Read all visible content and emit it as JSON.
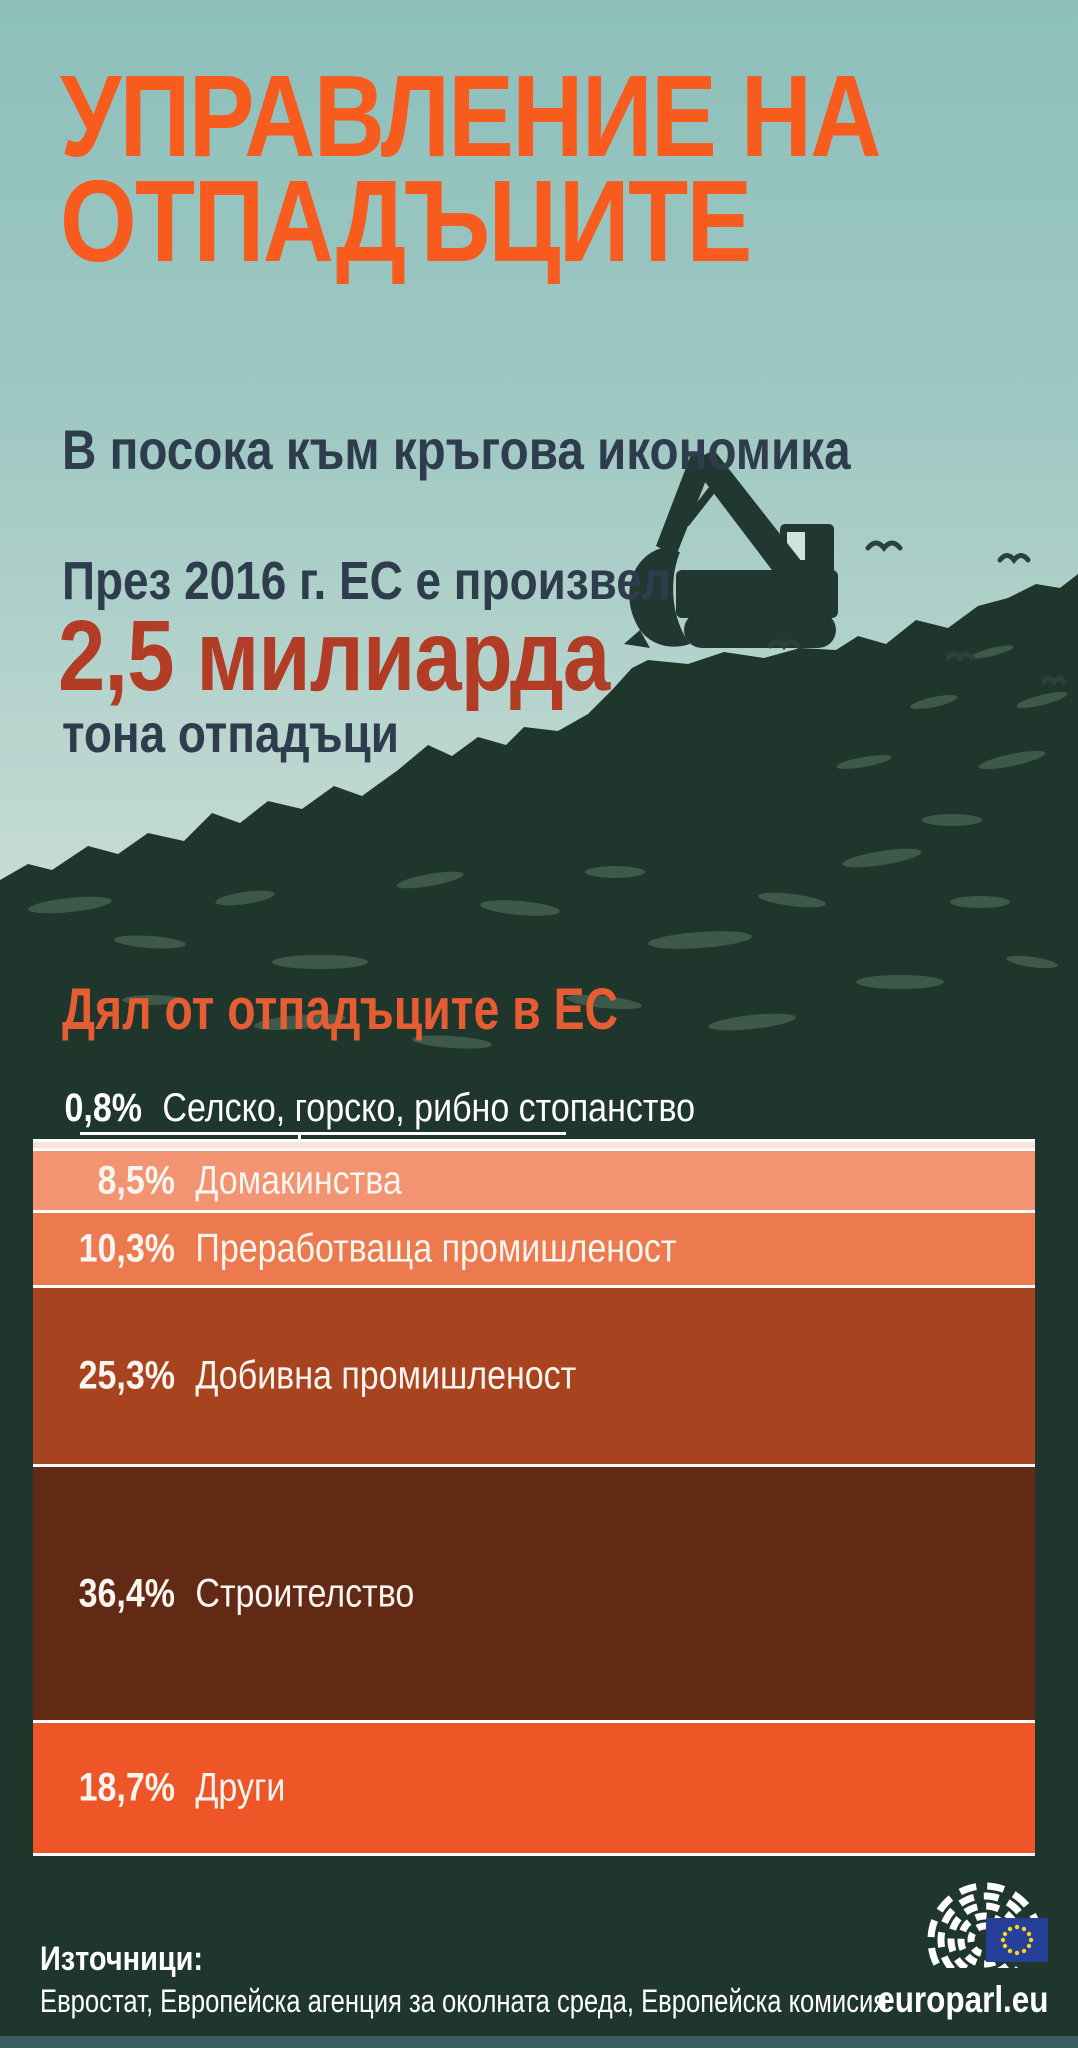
{
  "header": {
    "title_line1": "УПРАВЛЕНИЕ НА",
    "title_line2": "ОТПАДЪЦИТЕ",
    "subtitle": "В посока към кръгова икономика"
  },
  "intro": {
    "line1": "През 2016 г. ЕС е произвел",
    "amount": "2,5 милиарда",
    "line2": "тона отпадъци"
  },
  "chart_data": {
    "type": "bar",
    "variant": "stacked-vertical",
    "title": "Дял от отпадъците в ЕС",
    "unit": "%",
    "categories": [
      "Селско, горско, рибно стопанство",
      "Домакинства",
      "Преработваща промишленост",
      "Добивна промишленост",
      "Строителство",
      "Други"
    ],
    "values": [
      0.8,
      8.5,
      10.3,
      25.3,
      36.4,
      18.7
    ],
    "labels": [
      "0,8%",
      "8,5%",
      "10,3%",
      "25,3%",
      "36,4%",
      "18,7%"
    ],
    "colors": [
      "#f7e4da",
      "#f29372",
      "#ed7a4e",
      "#a8431f",
      "#622a15",
      "#ee5628"
    ],
    "legend": "none",
    "grid": "off"
  },
  "footer": {
    "sources_label": "Източници:",
    "sources": "Евростат, Европейска агенция за околната среда, Европейска комисия",
    "site": "europarl.eu"
  },
  "icons": {
    "scene": [
      "landfill-hill",
      "excavator-silhouette",
      "bird-icon"
    ],
    "logo": "ep-hemicycle-logo",
    "flag": "eu-flag-icon"
  },
  "colors": {
    "title_orange": "#f85b1e",
    "heading_orange": "#e65c33",
    "accent_red": "#b23c26",
    "navy_text": "#2e3c4d",
    "sky_top": "#8dbfbb",
    "sky_bottom": "#d8e8e0",
    "hill_green": "#1f362c",
    "eu_blue": "#26409a",
    "star_yellow": "#ffd617"
  }
}
